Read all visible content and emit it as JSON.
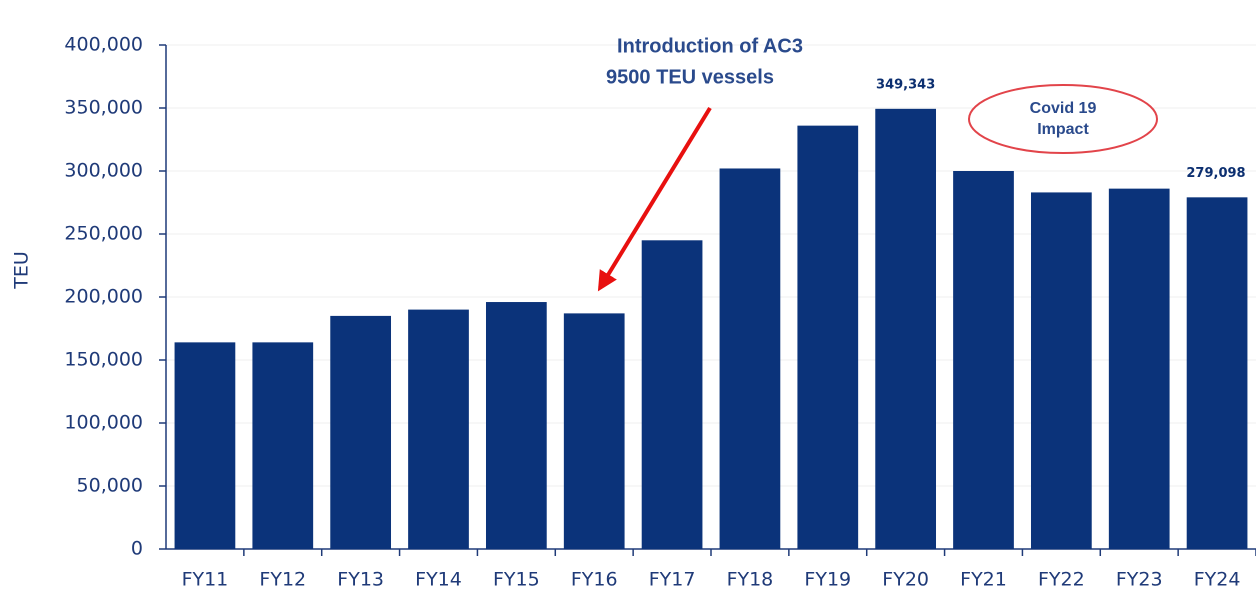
{
  "chart_data": {
    "type": "bar",
    "y_label": "TEU",
    "categories": [
      "FY11",
      "FY12",
      "FY13",
      "FY14",
      "FY15",
      "FY16",
      "FY17",
      "FY18",
      "FY19",
      "FY20",
      "FY21",
      "FY22",
      "FY23",
      "FY24"
    ],
    "values": [
      164000,
      164000,
      185000,
      190000,
      196000,
      187000,
      245000,
      302000,
      336000,
      349343,
      300000,
      283000,
      286000,
      279098
    ],
    "value_labels": [
      null,
      null,
      null,
      null,
      null,
      null,
      null,
      null,
      null,
      "349,343",
      null,
      null,
      null,
      "279,098"
    ],
    "color": "#0b337a",
    "ylim": [
      0,
      400000
    ],
    "yticks": [
      {
        "value": 0,
        "label": "0"
      },
      {
        "value": 50000,
        "label": "50,000"
      },
      {
        "value": 100000,
        "label": "100,000"
      },
      {
        "value": 150000,
        "label": "150,000"
      },
      {
        "value": 200000,
        "label": "200,000"
      },
      {
        "value": 250000,
        "label": "250,000"
      },
      {
        "value": 300000,
        "label": "300,000"
      },
      {
        "value": 350000,
        "label": "350,000"
      },
      {
        "value": 400000,
        "label": "400,000"
      }
    ],
    "grid": true,
    "annotations": [
      "Introduction of AC3",
      "9500 TEU vessels",
      "Covid 19",
      "Impact"
    ]
  }
}
